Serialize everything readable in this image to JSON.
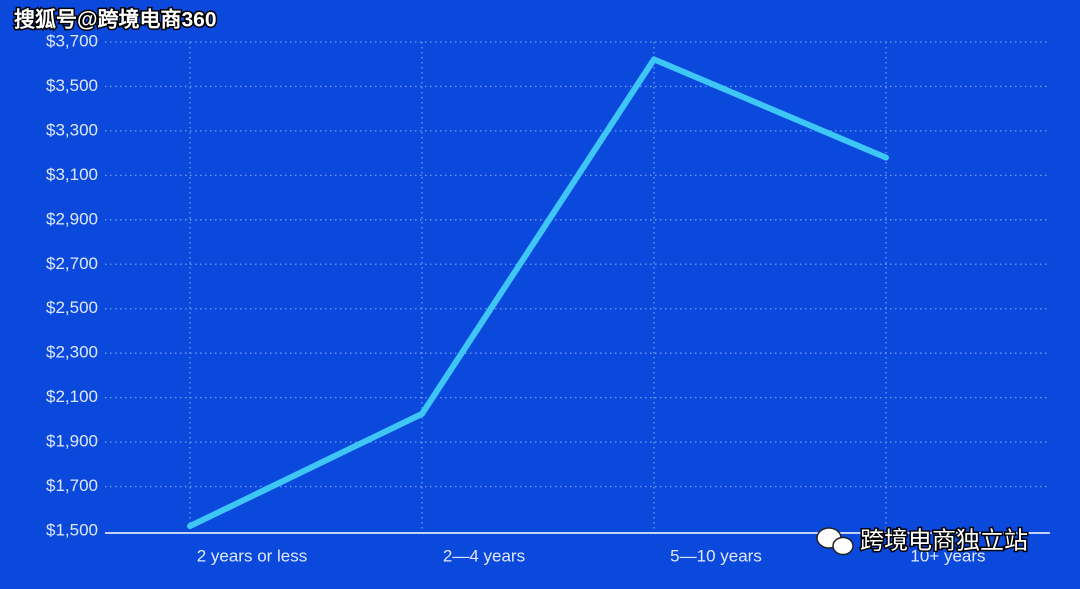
{
  "chart_data": {
    "type": "line",
    "watermark_top": "搜狐号@跨境电商360",
    "watermark_bottom": "跨境电商独立站",
    "categories": [
      "2 years or less",
      "2—4 years",
      "5—10 years",
      "10+ years"
    ],
    "series": [
      {
        "color": "#3ec6f6",
        "values": [
          1522,
          2027,
          3622,
          3180
        ]
      }
    ],
    "ylim": [
      1500,
      3700
    ],
    "yticks": [
      {
        "value": 1500,
        "label": "$1,500"
      },
      {
        "value": 1700,
        "label": "$1,700"
      },
      {
        "value": 1900,
        "label": "$1,900"
      },
      {
        "value": 2100,
        "label": "$2,100"
      },
      {
        "value": 2300,
        "label": "$2,300"
      },
      {
        "value": 2500,
        "label": "$2,500"
      },
      {
        "value": 2700,
        "label": "$2,700"
      },
      {
        "value": 2900,
        "label": "$2,900"
      },
      {
        "value": 3100,
        "label": "$3,100"
      },
      {
        "value": 3300,
        "label": "$3,300"
      },
      {
        "value": 3500,
        "label": "$3,500"
      },
      {
        "value": 3700,
        "label": "$3,700"
      }
    ],
    "grid": true
  }
}
